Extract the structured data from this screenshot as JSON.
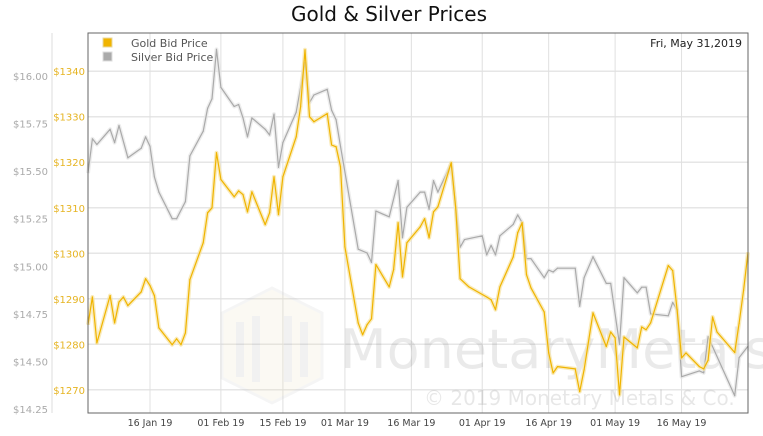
{
  "chart_data": {
    "type": "line",
    "title": "Gold & Silver Prices",
    "date_label": "Fri, May 31,2019",
    "grid": true,
    "legend_placement": "top-left",
    "xlim": [
      "2019-01-02",
      "2019-05-31"
    ],
    "x_ticks": [
      {
        "date": "2019-01-16",
        "label": "16 Jan 19"
      },
      {
        "date": "2019-02-01",
        "label": "01 Feb 19"
      },
      {
        "date": "2019-02-15",
        "label": "15 Feb 19"
      },
      {
        "date": "2019-03-01",
        "label": "01 Mar 19"
      },
      {
        "date": "2019-03-16",
        "label": "16 Mar 19"
      },
      {
        "date": "2019-04-01",
        "label": "01 Apr 19"
      },
      {
        "date": "2019-04-16",
        "label": "16 Apr 19"
      },
      {
        "date": "2019-05-01",
        "label": "01 May 19"
      },
      {
        "date": "2019-05-16",
        "label": "16 May 19"
      }
    ],
    "gold_axis": {
      "side": "left-inner",
      "ylim": [
        1264.9,
        1348.4
      ],
      "ticks": [
        1270,
        1280,
        1290,
        1300,
        1310,
        1320,
        1330,
        1340
      ],
      "tick_labels": [
        "$1270",
        "$1280",
        "$1290",
        "$1300",
        "$1310",
        "$1320",
        "$1330",
        "$1340"
      ]
    },
    "silver_axis": {
      "side": "left-outer",
      "ylim": [
        14.229,
        16.226
      ],
      "ticks": [
        14.25,
        14.5,
        14.75,
        15.0,
        15.25,
        15.5,
        15.75,
        16.0
      ],
      "tick_labels": [
        "$14.25",
        "$14.50",
        "$14.75",
        "$15.00",
        "$15.25",
        "$15.50",
        "$15.75",
        "$16.00"
      ]
    },
    "series": [
      {
        "name": "Gold Bid Price",
        "color": "#f0b400",
        "axis": "gold",
        "points": [
          [
            "2019-01-02",
            1284.3
          ],
          [
            "2019-01-03",
            1290.4
          ],
          [
            "2019-01-04",
            1280.3
          ],
          [
            "2019-01-07",
            1290.7
          ],
          [
            "2019-01-08",
            1284.7
          ],
          [
            "2019-01-09",
            1289.3
          ],
          [
            "2019-01-10",
            1290.4
          ],
          [
            "2019-01-11",
            1288.5
          ],
          [
            "2019-01-14",
            1291.5
          ],
          [
            "2019-01-15",
            1294.4
          ],
          [
            "2019-01-16",
            1292.9
          ],
          [
            "2019-01-17",
            1290.7
          ],
          [
            "2019-01-18",
            1283.6
          ],
          [
            "2019-01-21",
            1279.9
          ],
          [
            "2019-01-22",
            1281.2
          ],
          [
            "2019-01-23",
            1279.9
          ],
          [
            "2019-01-24",
            1282.5
          ],
          [
            "2019-01-25",
            1294.2
          ],
          [
            "2019-01-28",
            1302.3
          ],
          [
            "2019-01-29",
            1308.9
          ],
          [
            "2019-01-30",
            1310.0
          ],
          [
            "2019-01-31",
            1322.1
          ],
          [
            "2019-02-01",
            1316.2
          ],
          [
            "2019-02-04",
            1312.4
          ],
          [
            "2019-02-05",
            1313.7
          ],
          [
            "2019-02-06",
            1312.9
          ],
          [
            "2019-02-07",
            1309.1
          ],
          [
            "2019-02-08",
            1313.5
          ],
          [
            "2019-02-11",
            1306.3
          ],
          [
            "2019-02-12",
            1308.9
          ],
          [
            "2019-02-13",
            1316.8
          ],
          [
            "2019-02-14",
            1308.5
          ],
          [
            "2019-02-15",
            1316.8
          ],
          [
            "2019-02-18",
            1325.6
          ],
          [
            "2019-02-19",
            1332.2
          ],
          [
            "2019-02-20",
            1344.7
          ],
          [
            "2019-02-21",
            1330.0
          ],
          [
            "2019-02-22",
            1328.9
          ],
          [
            "2019-02-25",
            1330.7
          ],
          [
            "2019-02-26",
            1323.8
          ],
          [
            "2019-02-27",
            1323.4
          ],
          [
            "2019-02-28",
            1319.0
          ],
          [
            "2019-03-01",
            1301.4
          ],
          [
            "2019-03-04",
            1284.7
          ],
          [
            "2019-03-05",
            1282.1
          ],
          [
            "2019-03-06",
            1284.3
          ],
          [
            "2019-03-07",
            1285.6
          ],
          [
            "2019-03-08",
            1297.5
          ],
          [
            "2019-03-11",
            1292.6
          ],
          [
            "2019-03-12",
            1296.4
          ],
          [
            "2019-03-13",
            1306.7
          ],
          [
            "2019-03-14",
            1294.8
          ],
          [
            "2019-03-15",
            1302.3
          ],
          [
            "2019-03-18",
            1305.8
          ],
          [
            "2019-03-19",
            1307.6
          ],
          [
            "2019-03-20",
            1303.4
          ],
          [
            "2019-03-21",
            1309.1
          ],
          [
            "2019-03-22",
            1310.2
          ],
          [
            "2019-03-25",
            1319.9
          ],
          [
            "2019-03-26",
            1310.0
          ],
          [
            "2019-03-27",
            1294.4
          ],
          [
            "2019-03-29",
            1292.6
          ],
          [
            "2019-04-02",
            1290.4
          ],
          [
            "2019-04-03",
            1289.8
          ],
          [
            "2019-04-04",
            1287.6
          ],
          [
            "2019-04-05",
            1292.6
          ],
          [
            "2019-04-08",
            1299.2
          ],
          [
            "2019-04-09",
            1304.5
          ],
          [
            "2019-04-10",
            1306.7
          ],
          [
            "2019-04-11",
            1295.3
          ],
          [
            "2019-04-12",
            1292.4
          ],
          [
            "2019-04-15",
            1287.1
          ],
          [
            "2019-04-16",
            1278.1
          ],
          [
            "2019-04-17",
            1273.7
          ],
          [
            "2019-04-18",
            1275.1
          ],
          [
            "2019-04-22",
            1274.6
          ],
          [
            "2019-04-23",
            1269.6
          ],
          [
            "2019-04-24",
            1274.4
          ],
          [
            "2019-04-26",
            1286.9
          ],
          [
            "2019-04-29",
            1279.5
          ],
          [
            "2019-04-30",
            1282.7
          ],
          [
            "2019-05-01",
            1281.4
          ],
          [
            "2019-05-02",
            1268.9
          ],
          [
            "2019-05-03",
            1281.6
          ],
          [
            "2019-05-06",
            1279.2
          ],
          [
            "2019-05-07",
            1283.8
          ],
          [
            "2019-05-08",
            1283.2
          ],
          [
            "2019-05-09",
            1284.7
          ],
          [
            "2019-05-13",
            1297.3
          ],
          [
            "2019-05-14",
            1296.2
          ],
          [
            "2019-05-15",
            1287.6
          ],
          [
            "2019-05-16",
            1277.0
          ],
          [
            "2019-05-17",
            1278.1
          ],
          [
            "2019-05-20",
            1275.1
          ],
          [
            "2019-05-21",
            1274.6
          ],
          [
            "2019-05-22",
            1276.5
          ],
          [
            "2019-05-23",
            1286.0
          ],
          [
            "2019-05-24",
            1282.7
          ],
          [
            "2019-05-28",
            1278.2
          ],
          [
            "2019-05-29",
            1284.6
          ],
          [
            "2019-05-30",
            1291.9
          ],
          [
            "2019-05-31",
            1300.2
          ]
        ]
      },
      {
        "name": "Silver Bid Price",
        "color": "#aaaaaa",
        "axis": "silver",
        "points": [
          [
            "2019-01-02",
            15.49
          ],
          [
            "2019-01-03",
            15.67
          ],
          [
            "2019-01-04",
            15.64
          ],
          [
            "2019-01-07",
            15.72
          ],
          [
            "2019-01-08",
            15.65
          ],
          [
            "2019-01-09",
            15.74
          ],
          [
            "2019-01-11",
            15.57
          ],
          [
            "2019-01-14",
            15.62
          ],
          [
            "2019-01-15",
            15.68
          ],
          [
            "2019-01-16",
            15.63
          ],
          [
            "2019-01-17",
            15.47
          ],
          [
            "2019-01-18",
            15.39
          ],
          [
            "2019-01-21",
            15.25
          ],
          [
            "2019-01-22",
            15.25
          ],
          [
            "2019-01-24",
            15.34
          ],
          [
            "2019-01-25",
            15.58
          ],
          [
            "2019-01-28",
            15.71
          ],
          [
            "2019-01-29",
            15.83
          ],
          [
            "2019-01-30",
            15.88
          ],
          [
            "2019-01-31",
            16.14
          ],
          [
            "2019-02-01",
            15.94
          ],
          [
            "2019-02-04",
            15.84
          ],
          [
            "2019-02-05",
            15.85
          ],
          [
            "2019-02-06",
            15.78
          ],
          [
            "2019-02-07",
            15.68
          ],
          [
            "2019-02-08",
            15.78
          ],
          [
            "2019-02-11",
            15.72
          ],
          [
            "2019-02-12",
            15.69
          ],
          [
            "2019-02-13",
            15.8
          ],
          [
            "2019-02-14",
            15.52
          ],
          [
            "2019-02-15",
            15.65
          ],
          [
            "2019-02-18",
            15.81
          ],
          [
            "2019-02-20",
            16.07
          ],
          [
            "2019-02-21",
            15.86
          ],
          [
            "2019-02-22",
            15.9
          ],
          [
            "2019-02-25",
            15.93
          ],
          [
            "2019-02-26",
            15.82
          ],
          [
            "2019-02-27",
            15.77
          ],
          [
            "2019-02-28",
            15.63
          ],
          [
            "2019-03-04",
            15.09
          ],
          [
            "2019-03-06",
            15.07
          ],
          [
            "2019-03-07",
            15.02
          ],
          [
            "2019-03-08",
            15.29
          ],
          [
            "2019-03-11",
            15.26
          ],
          [
            "2019-03-13",
            15.45
          ],
          [
            "2019-03-14",
            15.15
          ],
          [
            "2019-03-15",
            15.31
          ],
          [
            "2019-03-18",
            15.39
          ],
          [
            "2019-03-19",
            15.39
          ],
          [
            "2019-03-20",
            15.3
          ],
          [
            "2019-03-21",
            15.45
          ],
          [
            "2019-03-22",
            15.39
          ],
          [
            "2019-03-25",
            15.54
          ],
          [
            "2019-03-26",
            15.31
          ],
          [
            "2019-03-27",
            15.1
          ],
          [
            "2019-03-28",
            15.14
          ],
          [
            "2019-04-01",
            15.16
          ],
          [
            "2019-04-02",
            15.06
          ],
          [
            "2019-04-03",
            15.11
          ],
          [
            "2019-04-04",
            15.06
          ],
          [
            "2019-04-05",
            15.16
          ],
          [
            "2019-04-08",
            15.22
          ],
          [
            "2019-04-09",
            15.27
          ],
          [
            "2019-04-10",
            15.23
          ],
          [
            "2019-04-11",
            15.04
          ],
          [
            "2019-04-12",
            15.04
          ],
          [
            "2019-04-15",
            14.94
          ],
          [
            "2019-04-16",
            14.98
          ],
          [
            "2019-04-17",
            14.97
          ],
          [
            "2019-04-18",
            14.99
          ],
          [
            "2019-04-22",
            14.99
          ],
          [
            "2019-04-23",
            14.79
          ],
          [
            "2019-04-24",
            14.94
          ],
          [
            "2019-04-26",
            15.05
          ],
          [
            "2019-04-29",
            14.91
          ],
          [
            "2019-04-30",
            14.91
          ],
          [
            "2019-05-02",
            14.59
          ],
          [
            "2019-05-03",
            14.94
          ],
          [
            "2019-05-06",
            14.86
          ],
          [
            "2019-05-07",
            14.89
          ],
          [
            "2019-05-08",
            14.89
          ],
          [
            "2019-05-09",
            14.75
          ],
          [
            "2019-05-13",
            14.74
          ],
          [
            "2019-05-14",
            14.81
          ],
          [
            "2019-05-15",
            14.77
          ],
          [
            "2019-05-16",
            14.42
          ],
          [
            "2019-05-20",
            14.45
          ],
          [
            "2019-05-21",
            14.44
          ],
          [
            "2019-05-22",
            14.63
          ],
          [
            "2019-05-28",
            14.32
          ],
          [
            "2019-05-29",
            14.52
          ],
          [
            "2019-05-31",
            14.58
          ]
        ]
      }
    ]
  },
  "watermark": {
    "brand": "MonetaryMetals",
    "copyright": "© 2019 Monetary Metals & Co."
  }
}
